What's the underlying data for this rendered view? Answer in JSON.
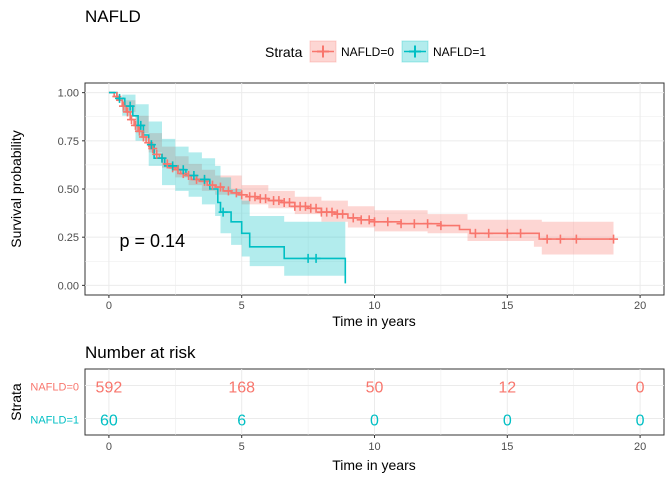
{
  "chart_data": [
    {
      "type": "line",
      "subtype": "kaplan-meier",
      "title": "NAFLD",
      "xlabel": "Time in years",
      "ylabel": "Survival probability",
      "xlim": [
        -0.9,
        20.9
      ],
      "ylim": [
        -0.05,
        1.05
      ],
      "xticks": [
        0,
        5,
        10,
        15,
        20
      ],
      "yticks": [
        0.0,
        0.25,
        0.5,
        0.75,
        1.0
      ],
      "ytick_labels": [
        "0.00",
        "0.25",
        "0.50",
        "0.75",
        "1.00"
      ],
      "grid": true,
      "legend": {
        "title": "Strata",
        "position": "top"
      },
      "annotation": "p = 0.14",
      "annotation_pos": {
        "x": 0.4,
        "y": 0.2
      },
      "series": [
        {
          "name": "NAFLD=0",
          "color": "#F8766D",
          "fill": "#F8766D",
          "steps": [
            [
              0,
              1.0
            ],
            [
              0.2,
              0.98
            ],
            [
              0.35,
              0.96
            ],
            [
              0.5,
              0.93
            ],
            [
              0.65,
              0.9
            ],
            [
              0.8,
              0.86
            ],
            [
              0.95,
              0.83
            ],
            [
              1.1,
              0.8
            ],
            [
              1.25,
              0.77
            ],
            [
              1.4,
              0.74
            ],
            [
              1.55,
              0.71
            ],
            [
              1.7,
              0.68
            ],
            [
              1.9,
              0.66
            ],
            [
              2.1,
              0.63
            ],
            [
              2.3,
              0.61
            ],
            [
              2.5,
              0.6
            ],
            [
              2.7,
              0.58
            ],
            [
              2.9,
              0.57
            ],
            [
              3.1,
              0.55
            ],
            [
              3.4,
              0.54
            ],
            [
              3.7,
              0.52
            ],
            [
              4.0,
              0.51
            ],
            [
              4.3,
              0.49
            ],
            [
              4.6,
              0.48
            ],
            [
              4.9,
              0.47
            ],
            [
              5.2,
              0.46
            ],
            [
              5.6,
              0.45
            ],
            [
              6.0,
              0.44
            ],
            [
              6.5,
              0.43
            ],
            [
              7.0,
              0.41
            ],
            [
              7.5,
              0.4
            ],
            [
              8.0,
              0.38
            ],
            [
              8.5,
              0.37
            ],
            [
              9.0,
              0.35
            ],
            [
              9.5,
              0.34
            ],
            [
              10.0,
              0.33
            ],
            [
              11.0,
              0.32
            ],
            [
              12.5,
              0.31
            ],
            [
              13.2,
              0.29
            ],
            [
              13.6,
              0.27
            ],
            [
              16.2,
              0.24
            ],
            [
              19.0,
              0.24
            ]
          ],
          "lower": [
            [
              0,
              1.0
            ],
            [
              0.5,
              0.9
            ],
            [
              1.0,
              0.79
            ],
            [
              1.5,
              0.69
            ],
            [
              2.0,
              0.61
            ],
            [
              2.5,
              0.56
            ],
            [
              3.0,
              0.52
            ],
            [
              3.5,
              0.49
            ],
            [
              4.0,
              0.47
            ],
            [
              5.0,
              0.42
            ],
            [
              6.0,
              0.4
            ],
            [
              7.0,
              0.37
            ],
            [
              8.0,
              0.33
            ],
            [
              9.0,
              0.3
            ],
            [
              10.0,
              0.28
            ],
            [
              12.0,
              0.27
            ],
            [
              13.5,
              0.23
            ],
            [
              16.0,
              0.2
            ],
            [
              16.3,
              0.16
            ],
            [
              19.0,
              0.16
            ]
          ],
          "upper": [
            [
              0,
              1.0
            ],
            [
              0.5,
              0.96
            ],
            [
              1.0,
              0.88
            ],
            [
              1.5,
              0.79
            ],
            [
              2.0,
              0.72
            ],
            [
              2.5,
              0.67
            ],
            [
              3.0,
              0.63
            ],
            [
              3.5,
              0.6
            ],
            [
              4.0,
              0.57
            ],
            [
              5.0,
              0.52
            ],
            [
              6.0,
              0.49
            ],
            [
              7.0,
              0.46
            ],
            [
              8.0,
              0.44
            ],
            [
              9.0,
              0.41
            ],
            [
              10.0,
              0.39
            ],
            [
              12.0,
              0.37
            ],
            [
              13.5,
              0.34
            ],
            [
              16.0,
              0.34
            ],
            [
              16.3,
              0.33
            ],
            [
              19.0,
              0.33
            ]
          ],
          "censor_x": [
            0.3,
            0.55,
            0.7,
            0.85,
            1.0,
            1.15,
            1.3,
            1.5,
            1.65,
            1.8,
            2.0,
            2.2,
            2.4,
            2.6,
            2.8,
            3.0,
            3.3,
            3.6,
            3.9,
            4.2,
            4.5,
            4.8,
            5.0,
            5.3,
            5.5,
            5.7,
            5.9,
            6.2,
            6.4,
            6.6,
            6.8,
            7.0,
            7.2,
            7.4,
            7.6,
            7.8,
            8.0,
            8.2,
            8.4,
            8.6,
            8.8,
            9.2,
            9.5,
            9.8,
            10.0,
            10.5,
            11.0,
            11.5,
            12.0,
            12.5,
            13.8,
            14.3,
            15.0,
            15.5,
            16.5,
            17.0,
            17.6,
            19.0
          ]
        },
        {
          "name": "NAFLD=1",
          "color": "#00BFC4",
          "fill": "#00BFC4",
          "steps": [
            [
              0,
              1.0
            ],
            [
              0.3,
              0.97
            ],
            [
              0.6,
              0.93
            ],
            [
              0.9,
              0.88
            ],
            [
              1.1,
              0.83
            ],
            [
              1.3,
              0.78
            ],
            [
              1.5,
              0.73
            ],
            [
              1.7,
              0.66
            ],
            [
              2.1,
              0.62
            ],
            [
              2.6,
              0.6
            ],
            [
              2.9,
              0.57
            ],
            [
              3.3,
              0.55
            ],
            [
              3.8,
              0.5
            ],
            [
              4.1,
              0.43
            ],
            [
              4.2,
              0.38
            ],
            [
              4.6,
              0.33
            ],
            [
              5.0,
              0.27
            ],
            [
              5.3,
              0.2
            ],
            [
              6.6,
              0.14
            ],
            [
              8.9,
              0.01
            ]
          ],
          "lower": [
            [
              0,
              1.0
            ],
            [
              0.5,
              0.88
            ],
            [
              1.0,
              0.75
            ],
            [
              1.5,
              0.62
            ],
            [
              2.0,
              0.52
            ],
            [
              2.5,
              0.49
            ],
            [
              3.0,
              0.46
            ],
            [
              3.5,
              0.42
            ],
            [
              4.0,
              0.36
            ],
            [
              4.2,
              0.27
            ],
            [
              4.6,
              0.21
            ],
            [
              5.0,
              0.15
            ],
            [
              5.3,
              0.1
            ],
            [
              6.6,
              0.05
            ],
            [
              8.9,
              0.0
            ]
          ],
          "upper": [
            [
              0,
              1.0
            ],
            [
              0.5,
              0.99
            ],
            [
              1.0,
              0.94
            ],
            [
              1.5,
              0.85
            ],
            [
              2.0,
              0.76
            ],
            [
              2.5,
              0.72
            ],
            [
              3.0,
              0.69
            ],
            [
              3.5,
              0.66
            ],
            [
              4.0,
              0.62
            ],
            [
              4.2,
              0.56
            ],
            [
              4.6,
              0.5
            ],
            [
              5.0,
              0.44
            ],
            [
              5.3,
              0.36
            ],
            [
              6.6,
              0.33
            ],
            [
              8.9,
              0.33
            ]
          ],
          "censor_x": [
            0.4,
            0.8,
            1.2,
            1.6,
            2.0,
            2.4,
            2.8,
            3.2,
            3.6,
            4.3,
            7.5,
            7.8
          ]
        }
      ]
    },
    {
      "type": "table",
      "title": "Number at risk",
      "xlabel": "Time in years",
      "ylabel": "Strata",
      "xticks": [
        0,
        5,
        10,
        15,
        20
      ],
      "rows": [
        {
          "name": "NAFLD=0",
          "color": "#F8766D",
          "times": [
            0,
            5,
            10,
            15,
            20
          ],
          "values": [
            "592",
            "168",
            "50",
            "12",
            "0"
          ]
        },
        {
          "name": "NAFLD=1",
          "color": "#00BFC4",
          "times": [
            0,
            5,
            10,
            15,
            20
          ],
          "values": [
            "60",
            "6",
            "0",
            "0",
            "0"
          ]
        }
      ]
    }
  ]
}
